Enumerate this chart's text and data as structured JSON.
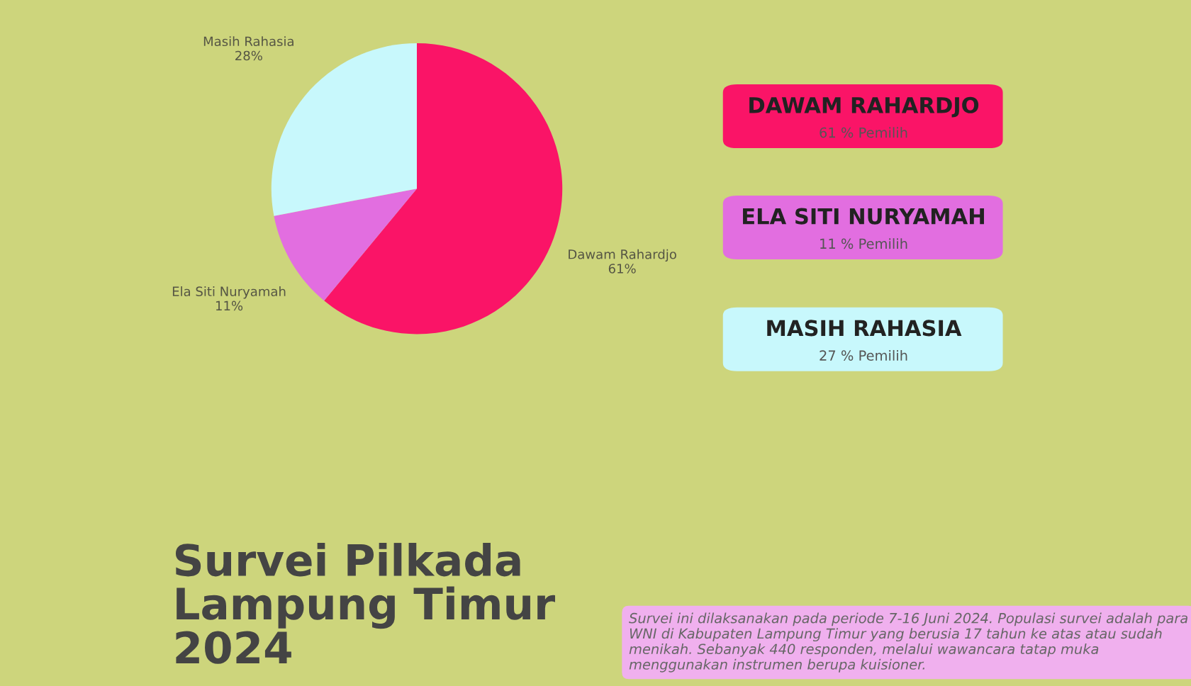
{
  "chart_data": [
    {
      "type": "pie",
      "title": "Survei Pilkada\nLampung Timur\n2024",
      "categories": [
        "Dawam Rahardjo",
        "Ela Siti Nuryamah",
        "Masih Rahasia"
      ],
      "values": [
        61,
        11,
        28
      ],
      "value_labels": [
        "61%",
        "11%",
        "28%"
      ],
      "colors": [
        "#fa1467",
        "#e26ee0",
        "#c8f8fc"
      ],
      "annotations": [
        "Survei ini dilaksanakan pada periode 7-16 Juni 2024. Populasi survei adalah para WNI di Kabupaten Lampung Timur yang berusia 17 tahun ke atas atau sudah menikah. Sebanyak 440 responden, melalui wawancara tatap muka menggunakan instrumen berupa kuisioner."
      ]
    },
    {
      "type": "other",
      "annotations": [
        "DAWAM RAHARDJO",
        "61 % Pemilih",
        "ELA SITI NURYAMAH",
        "11 % Pemilih",
        "MASIH RAHASIA",
        "27 % Pemilih"
      ],
      "colors": [
        "#fa1467",
        "#e26ee0",
        "#c8f8fc"
      ]
    }
  ]
}
